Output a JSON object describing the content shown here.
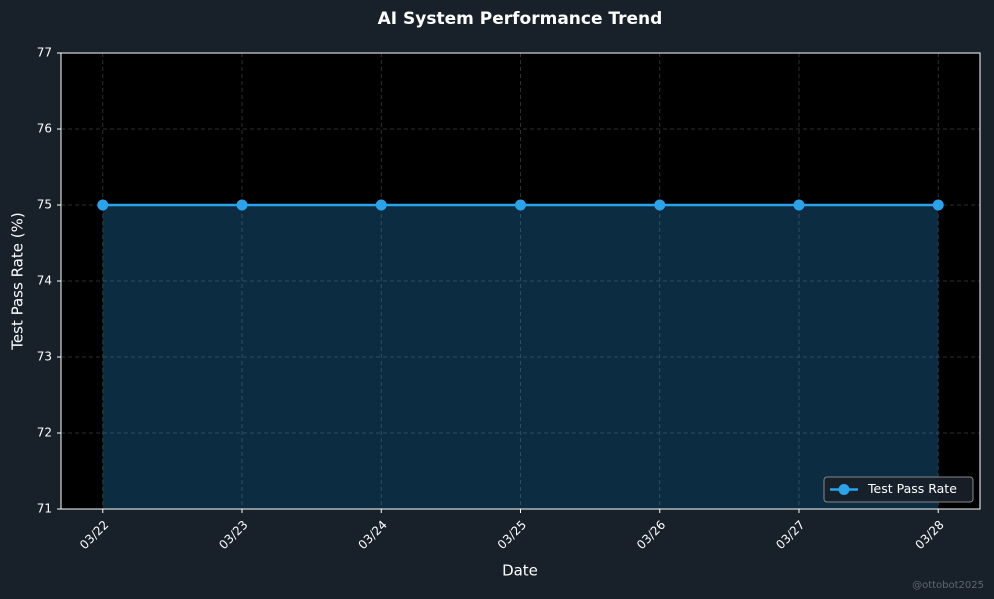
{
  "chart_data": {
    "type": "line",
    "title": "AI System Performance Trend",
    "x_label": "Date",
    "y_label": "Test Pass Rate (%)",
    "categories": [
      "03/22",
      "03/23",
      "03/24",
      "03/25",
      "03/26",
      "03/27",
      "03/28"
    ],
    "series": [
      {
        "name": "Test Pass Rate",
        "color": "#2aa3ea",
        "values": [
          75,
          75,
          75,
          75,
          75,
          75,
          75
        ]
      }
    ],
    "fill_area": true,
    "ylim": [
      71,
      77
    ],
    "yticks": [
      71,
      72,
      73,
      74,
      75,
      76,
      77
    ],
    "grid": true,
    "legend": "lower right",
    "watermark": "@ottobot2025"
  }
}
